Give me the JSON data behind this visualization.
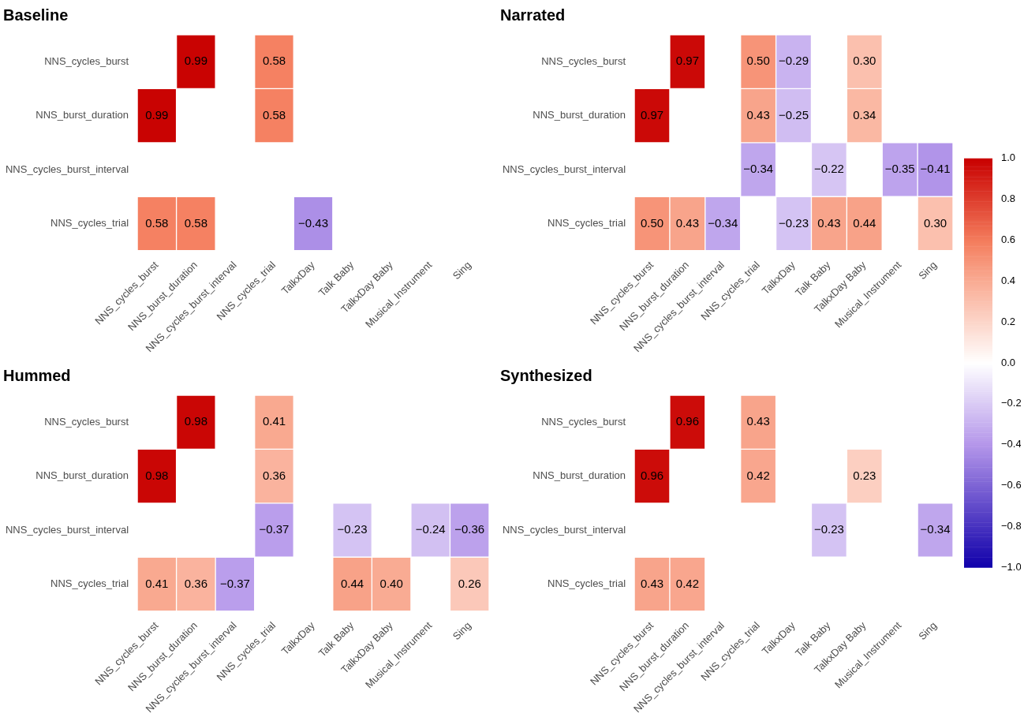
{
  "chart_data": [
    {
      "type": "heatmap",
      "title": "Baseline",
      "categories": [
        "NNS_cycles_burst",
        "NNS_burst_duration",
        "NNS_cycles_burst_interval",
        "NNS_cycles_trial",
        "TalkxDay",
        "Talk Baby",
        "TalkxDay Baby",
        "Musical_Instrument",
        "Sing"
      ],
      "y_categories": [
        "NNS_cycles_burst",
        "NNS_burst_duration",
        "NNS_cycles_burst_interval",
        "NNS_cycles_trial"
      ],
      "cells": [
        [
          null,
          0.99,
          null,
          0.58,
          null,
          null,
          null,
          null,
          null
        ],
        [
          0.99,
          null,
          null,
          0.58,
          null,
          null,
          null,
          null,
          null
        ],
        [
          null,
          null,
          null,
          null,
          null,
          null,
          null,
          null,
          null
        ],
        [
          0.58,
          0.58,
          null,
          null,
          -0.43,
          null,
          null,
          null,
          null
        ]
      ],
      "cell_labels": [
        [
          null,
          "0.99",
          null,
          "0.58",
          null,
          null,
          null,
          null,
          null
        ],
        [
          "0.99",
          null,
          null,
          "0.58",
          null,
          null,
          null,
          null,
          null
        ],
        [
          null,
          null,
          null,
          null,
          null,
          null,
          null,
          null,
          null
        ],
        [
          "0.58",
          "0.58",
          null,
          null,
          "−0.43",
          null,
          null,
          null,
          null
        ]
      ]
    },
    {
      "type": "heatmap",
      "title": "Narrated",
      "categories": [
        "NNS_cycles_burst",
        "NNS_burst_duration",
        "NNS_cycles_burst_interval",
        "NNS_cycles_trial",
        "TalkxDay",
        "Talk Baby",
        "TalkxDay Baby",
        "Musical_Instrument",
        "Sing"
      ],
      "y_categories": [
        "NNS_cycles_burst",
        "NNS_burst_duration",
        "NNS_cycles_burst_interval",
        "NNS_cycles_trial"
      ],
      "cells": [
        [
          null,
          0.97,
          null,
          0.5,
          -0.29,
          null,
          0.3,
          null,
          null
        ],
        [
          0.97,
          null,
          null,
          0.43,
          -0.25,
          null,
          0.34,
          null,
          null
        ],
        [
          null,
          null,
          null,
          -0.34,
          null,
          -0.22,
          null,
          -0.35,
          -0.41
        ],
        [
          0.5,
          0.43,
          -0.34,
          null,
          -0.23,
          0.43,
          0.44,
          null,
          0.3
        ]
      ],
      "cell_labels": [
        [
          null,
          "0.97",
          null,
          "0.50",
          "−0.29",
          null,
          "0.30",
          null,
          null
        ],
        [
          "0.97",
          null,
          null,
          "0.43",
          "−0.25",
          null,
          "0.34",
          null,
          null
        ],
        [
          null,
          null,
          null,
          "−0.34",
          null,
          "−0.22",
          null,
          "−0.35",
          "−0.41"
        ],
        [
          "0.50",
          "0.43",
          "−0.34",
          null,
          "−0.23",
          "0.43",
          "0.44",
          null,
          "0.30"
        ]
      ],
      "clim": [
        -1,
        1
      ],
      "cticks": [
        {
          "value": -1,
          "label": "−1.0"
        },
        {
          "value": -0.8,
          "label": "−0.8"
        },
        {
          "value": -0.6,
          "label": "−0.6"
        },
        {
          "value": -0.4,
          "label": "−0.4"
        },
        {
          "value": -0.2,
          "label": "−0.2"
        },
        {
          "value": 0,
          "label": "0.0"
        },
        {
          "value": 0.2,
          "label": "0.2"
        },
        {
          "value": 0.4,
          "label": "0.4"
        },
        {
          "value": 0.6,
          "label": "0.6"
        },
        {
          "value": 0.8,
          "label": "0.8"
        },
        {
          "value": 1,
          "label": "1.0"
        }
      ]
    },
    {
      "type": "heatmap",
      "title": "Hummed",
      "categories": [
        "NNS_cycles_burst",
        "NNS_burst_duration",
        "NNS_cycles_burst_interval",
        "NNS_cycles_trial",
        "TalkxDay",
        "Talk Baby",
        "TalkxDay Baby",
        "Musical_Instrument",
        "Sing"
      ],
      "y_categories": [
        "NNS_cycles_burst",
        "NNS_burst_duration",
        "NNS_cycles_burst_interval",
        "NNS_cycles_trial"
      ],
      "cells": [
        [
          null,
          0.98,
          null,
          0.41,
          null,
          null,
          null,
          null,
          null
        ],
        [
          0.98,
          null,
          null,
          0.36,
          null,
          null,
          null,
          null,
          null
        ],
        [
          null,
          null,
          null,
          -0.37,
          null,
          -0.23,
          null,
          -0.24,
          -0.36
        ],
        [
          0.41,
          0.36,
          -0.37,
          null,
          null,
          0.44,
          0.4,
          null,
          0.26
        ]
      ],
      "cell_labels": [
        [
          null,
          "0.98",
          null,
          "0.41",
          null,
          null,
          null,
          null,
          null
        ],
        [
          "0.98",
          null,
          null,
          "0.36",
          null,
          null,
          null,
          null,
          null
        ],
        [
          null,
          null,
          null,
          "−0.37",
          null,
          "−0.23",
          null,
          "−0.24",
          "−0.36"
        ],
        [
          "0.41",
          "0.36",
          "−0.37",
          null,
          null,
          "0.44",
          "0.40",
          null,
          "0.26"
        ]
      ]
    },
    {
      "type": "heatmap",
      "title": "Synthesized",
      "categories": [
        "NNS_cycles_burst",
        "NNS_burst_duration",
        "NNS_cycles_burst_interval",
        "NNS_cycles_trial",
        "TalkxDay",
        "Talk Baby",
        "TalkxDay Baby",
        "Musical_Instrument",
        "Sing"
      ],
      "y_categories": [
        "NNS_cycles_burst",
        "NNS_burst_duration",
        "NNS_cycles_burst_interval",
        "NNS_cycles_trial"
      ],
      "cells": [
        [
          null,
          0.96,
          null,
          0.43,
          null,
          null,
          null,
          null,
          null
        ],
        [
          0.96,
          null,
          null,
          0.42,
          null,
          null,
          0.23,
          null,
          null
        ],
        [
          null,
          null,
          null,
          null,
          null,
          -0.23,
          null,
          null,
          -0.34
        ],
        [
          0.43,
          0.42,
          null,
          null,
          null,
          null,
          null,
          null,
          null
        ]
      ],
      "cell_labels": [
        [
          null,
          "0.96",
          null,
          "0.43",
          null,
          null,
          null,
          null,
          null
        ],
        [
          "0.96",
          null,
          null,
          "0.42",
          null,
          null,
          "0.23",
          null,
          null
        ],
        [
          null,
          null,
          null,
          null,
          null,
          "−0.23",
          null,
          null,
          "−0.34"
        ],
        [
          "0.43",
          "0.42",
          null,
          null,
          null,
          null,
          null,
          null,
          null
        ]
      ]
    }
  ]
}
